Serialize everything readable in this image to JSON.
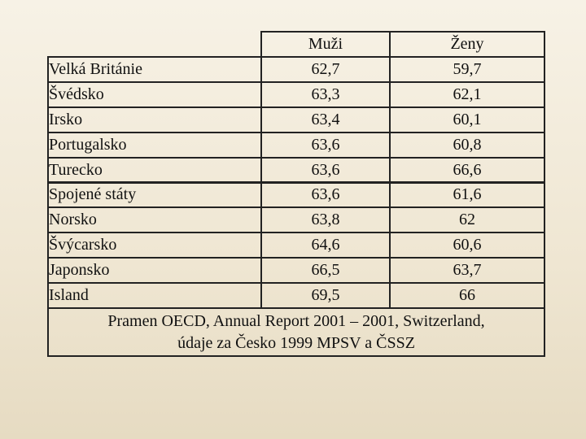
{
  "table": {
    "columns": [
      "Muži",
      "Ženy"
    ],
    "rows": [
      [
        "Velká Británie",
        "62,7",
        "59,7"
      ],
      [
        "Švédsko",
        "63,3",
        "62,1"
      ],
      [
        "Irsko",
        "63,4",
        "60,1"
      ],
      [
        "Portugalsko",
        "63,6",
        "60,8"
      ],
      [
        "Turecko",
        "63,6",
        "66,6"
      ],
      [
        "Spojené státy",
        "63,6",
        "61,6"
      ],
      [
        "Norsko",
        "63,8",
        "62"
      ],
      [
        "Švýcarsko",
        "64,6",
        "60,6"
      ],
      [
        "Japonsko",
        "66,5",
        "63,7"
      ],
      [
        "Island",
        "69,5",
        "66"
      ]
    ],
    "note": [
      "Pramen OECD, Annual Report 2001 – 2001, Switzerland,",
      "údaje za Česko 1999 MPSV a ČSSZ"
    ]
  }
}
